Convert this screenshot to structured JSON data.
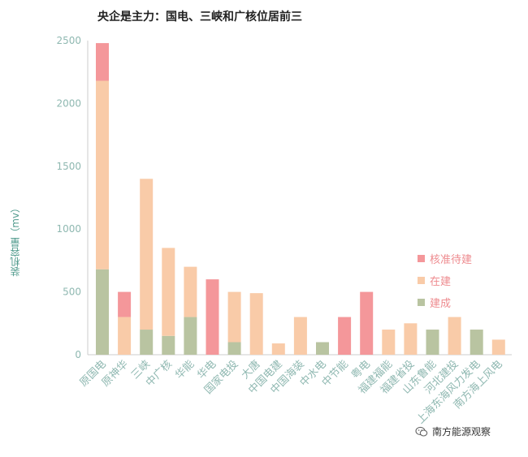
{
  "colors": {
    "approved": "#f4979a",
    "building": "#f9cba8",
    "built": "#b9c4a1",
    "axis_text": "#8fb8b1",
    "legend_text": "#ee8b8f"
  },
  "watermark": {
    "text": "南方能源观察",
    "icon": "wechat-icon"
  },
  "chart_data": {
    "type": "bar",
    "stacked": true,
    "title": "央企是主力：国电、三峡和广核位居前三",
    "ylabel": "装机容量（mv）",
    "xlabel": "",
    "ylim": [
      0,
      2500
    ],
    "yticks": [
      0,
      500,
      1000,
      1500,
      2000,
      2500
    ],
    "grid": false,
    "legend_position": "right",
    "categories": [
      "原国电",
      "原神华",
      "三峡",
      "中广核",
      "华能",
      "华电",
      "国家电投",
      "大唐",
      "中国电建",
      "中国海装",
      "中水电",
      "中节能",
      "粤电",
      "福建福能",
      "福建省投",
      "山东鲁能",
      "河北建投",
      "上海东海风力发电",
      "南方海上风电"
    ],
    "series": [
      {
        "name": "建成",
        "values": [
          680,
          0,
          200,
          150,
          300,
          0,
          100,
          0,
          0,
          0,
          100,
          0,
          0,
          0,
          0,
          200,
          0,
          200,
          0
        ]
      },
      {
        "name": "在建",
        "values": [
          1500,
          300,
          1200,
          700,
          400,
          0,
          400,
          490,
          90,
          300,
          0,
          0,
          0,
          200,
          250,
          0,
          300,
          0,
          120
        ]
      },
      {
        "name": "核准待建",
        "values": [
          300,
          200,
          0,
          0,
          0,
          600,
          0,
          0,
          0,
          0,
          0,
          300,
          500,
          0,
          0,
          0,
          0,
          0,
          0
        ]
      }
    ],
    "legend": [
      {
        "label": "核准待建",
        "color": "#f4979a"
      },
      {
        "label": "在建",
        "color": "#f9cba8"
      },
      {
        "label": "建成",
        "color": "#b9c4a1"
      }
    ]
  }
}
